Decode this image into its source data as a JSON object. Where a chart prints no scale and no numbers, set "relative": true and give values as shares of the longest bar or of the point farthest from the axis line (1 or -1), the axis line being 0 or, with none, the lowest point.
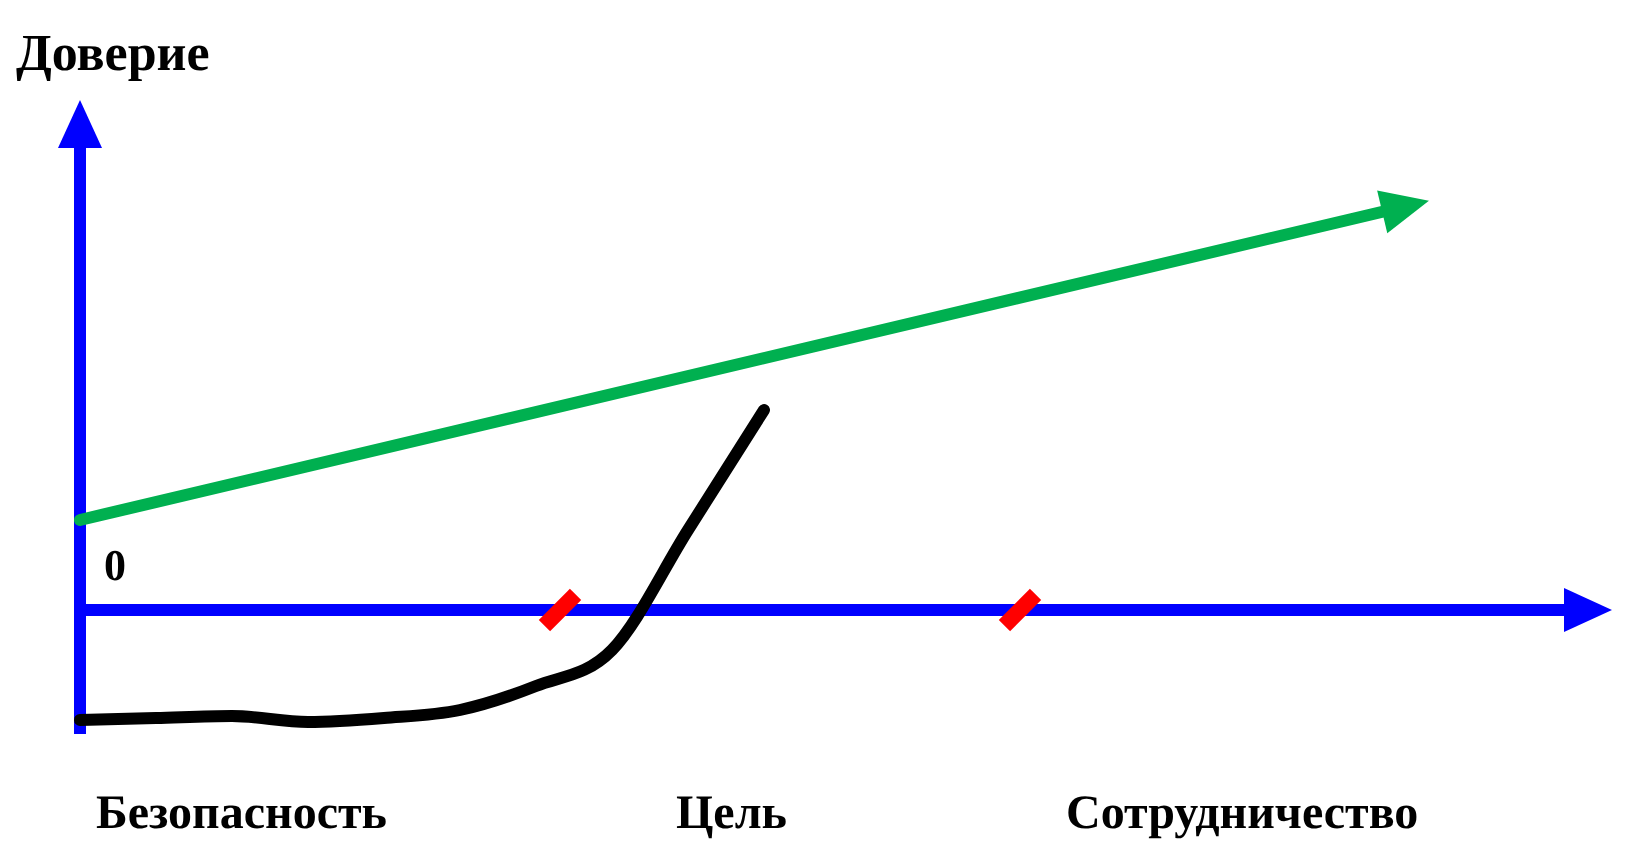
{
  "chart_data": {
    "type": "line",
    "relative": true,
    "categories": [
      null,
      null,
      null,
      null,
      null,
      null,
      null,
      null,
      null,
      null,
      null,
      null,
      null,
      null,
      null,
      null,
      null,
      null,
      null,
      null,
      null
    ],
    "series": [
      {
        "color": "#000000",
        "values": [
          -0.55,
          -0.54,
          -0.53,
          -0.56,
          -0.54,
          -0.5,
          -0.38,
          -0.2,
          0.4,
          1.0,
          null,
          null,
          null,
          null,
          null,
          null,
          null,
          null,
          null,
          null,
          null
        ]
      }
    ],
    "ref_lines": [
      {
        "axis": "y",
        "value": 0,
        "color": "#0000ff"
      }
    ],
    "annotations": [
      "Доверие",
      "0",
      "Безопасность",
      "Цель",
      "Сотрудничество"
    ],
    "legend": false
  }
}
